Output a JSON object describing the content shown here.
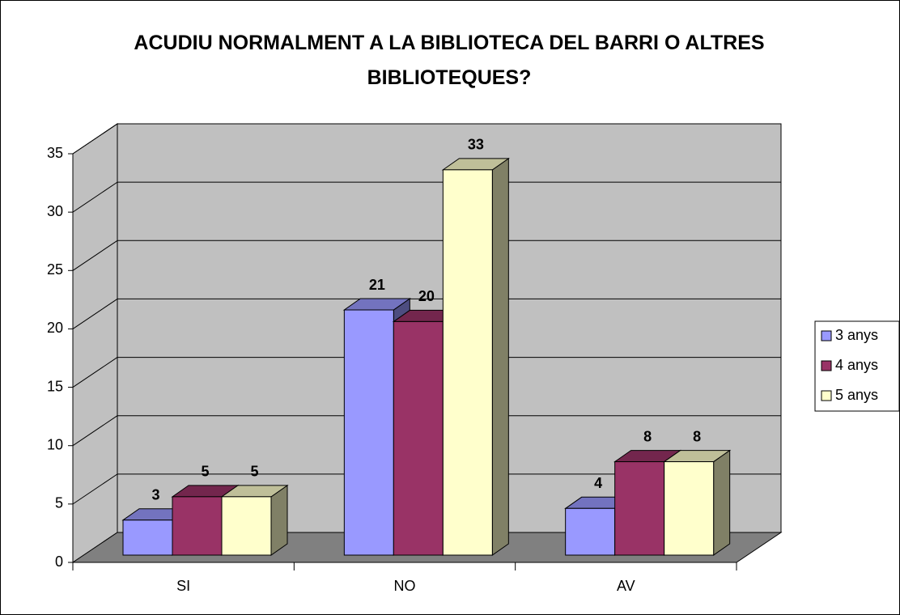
{
  "chart_data": {
    "type": "bar3d",
    "title": "ACUDIU NORMALMENT A LA BIBLIOTECA DEL BARRI O ALTRES BIBLIOTEQUES?",
    "categories": [
      "SI",
      "NO",
      "AV"
    ],
    "series": [
      {
        "name": "3 anys",
        "color": "#9999ff",
        "values": [
          3,
          21,
          4
        ]
      },
      {
        "name": "4 anys",
        "color": "#993366",
        "values": [
          5,
          20,
          8
        ]
      },
      {
        "name": "5 anys",
        "color": "#ffffcc",
        "values": [
          5,
          33,
          8
        ]
      }
    ],
    "ylim": [
      0,
      35
    ],
    "yticks": [
      0,
      5,
      10,
      15,
      20,
      25,
      30,
      35
    ],
    "grid": true,
    "legend": "right"
  }
}
